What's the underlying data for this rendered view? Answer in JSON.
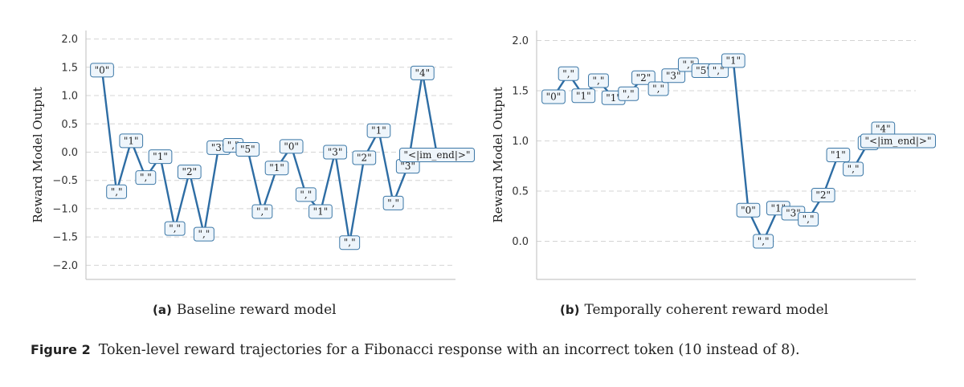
{
  "chart_data": [
    {
      "type": "line",
      "subcaption_tag": "(a)",
      "subcaption_text": "Baseline reward model",
      "ylabel": "Reward Model Output",
      "ylim": [
        -2.25,
        2.15
      ],
      "yticks": [
        "2.0",
        "1.5",
        "1.0",
        "0.5",
        "0.0",
        "−0.5",
        "−1.0",
        "−1.5",
        "−2.0"
      ],
      "ytick_values": [
        2.0,
        1.5,
        1.0,
        0.5,
        0.0,
        -0.5,
        -1.0,
        -1.5,
        -2.0
      ],
      "grid": true,
      "points": [
        {
          "token": "\"0\"",
          "y": 1.45
        },
        {
          "token": "\",\"",
          "y": -0.7
        },
        {
          "token": "\"1\"",
          "y": 0.2
        },
        {
          "token": "\",\"",
          "y": -0.45
        },
        {
          "token": "\"1\"",
          "y": -0.08
        },
        {
          "token": "\",\"",
          "y": -1.35
        },
        {
          "token": "\"2\"",
          "y": -0.35
        },
        {
          "token": "\",\"",
          "y": -1.45
        },
        {
          "token": "\"3\"",
          "y": 0.08
        },
        {
          "token": "\",\"",
          "y": 0.12
        },
        {
          "token": "\"5\"",
          "y": 0.05
        },
        {
          "token": "\",\"",
          "y": -1.05
        },
        {
          "token": "\"1\"",
          "y": -0.28
        },
        {
          "token": "\"0\"",
          "y": 0.1
        },
        {
          "token": "\",\"",
          "y": -0.75
        },
        {
          "token": "\"1\"",
          "y": -1.05
        },
        {
          "token": "\"3\"",
          "y": 0.0
        },
        {
          "token": "\",\"",
          "y": -1.6
        },
        {
          "token": "\"2\"",
          "y": -0.1
        },
        {
          "token": "\"1\"",
          "y": 0.38
        },
        {
          "token": "\",\"",
          "y": -0.9
        },
        {
          "token": "\"3\"",
          "y": -0.25
        },
        {
          "token": "\"4\"",
          "y": 1.4
        },
        {
          "token": "\"<|im_end|>\"",
          "y": -0.05
        }
      ]
    },
    {
      "type": "line",
      "subcaption_tag": "(b)",
      "subcaption_text": "Temporally coherent reward model",
      "ylabel": "Reward Model Output",
      "ylim": [
        -0.38,
        2.1
      ],
      "yticks": [
        "2.0",
        "1.5",
        "1.0",
        "0.5",
        "0.0"
      ],
      "ytick_values": [
        2.0,
        1.5,
        1.0,
        0.5,
        0.0
      ],
      "grid": true,
      "points": [
        {
          "token": "\"0\"",
          "y": 1.44
        },
        {
          "token": "\",\"",
          "y": 1.67
        },
        {
          "token": "\"1\"",
          "y": 1.45
        },
        {
          "token": "\",\"",
          "y": 1.6
        },
        {
          "token": "\"1\"",
          "y": 1.43
        },
        {
          "token": "\",\"",
          "y": 1.47
        },
        {
          "token": "\"2\"",
          "y": 1.63
        },
        {
          "token": "\",\"",
          "y": 1.52
        },
        {
          "token": "\"3\"",
          "y": 1.65
        },
        {
          "token": "\",\"",
          "y": 1.76
        },
        {
          "token": "\"5\"",
          "y": 1.7
        },
        {
          "token": "\",\"",
          "y": 1.7
        },
        {
          "token": "\"1\"",
          "y": 1.8
        },
        {
          "token": "\"0\"",
          "y": 0.31
        },
        {
          "token": "\",\"",
          "y": 0.0
        },
        {
          "token": "\"1\"",
          "y": 0.33
        },
        {
          "token": "\"3\"",
          "y": 0.28
        },
        {
          "token": "\",\"",
          "y": 0.22
        },
        {
          "token": "\"2\"",
          "y": 0.46
        },
        {
          "token": "\"1\"",
          "y": 0.86
        },
        {
          "token": "\",\"",
          "y": 0.72
        },
        {
          "token": "\",\"",
          "y": 0.98
        },
        {
          "token": "\"4\"",
          "y": 1.12
        },
        {
          "token": "\"<|im_end|>\"",
          "y": 1.0
        }
      ]
    }
  ],
  "figure_caption": {
    "label": "Figure 2",
    "text": "Token-level reward trajectories for a Fibonacci response with an incorrect token (10 instead of 8)."
  }
}
